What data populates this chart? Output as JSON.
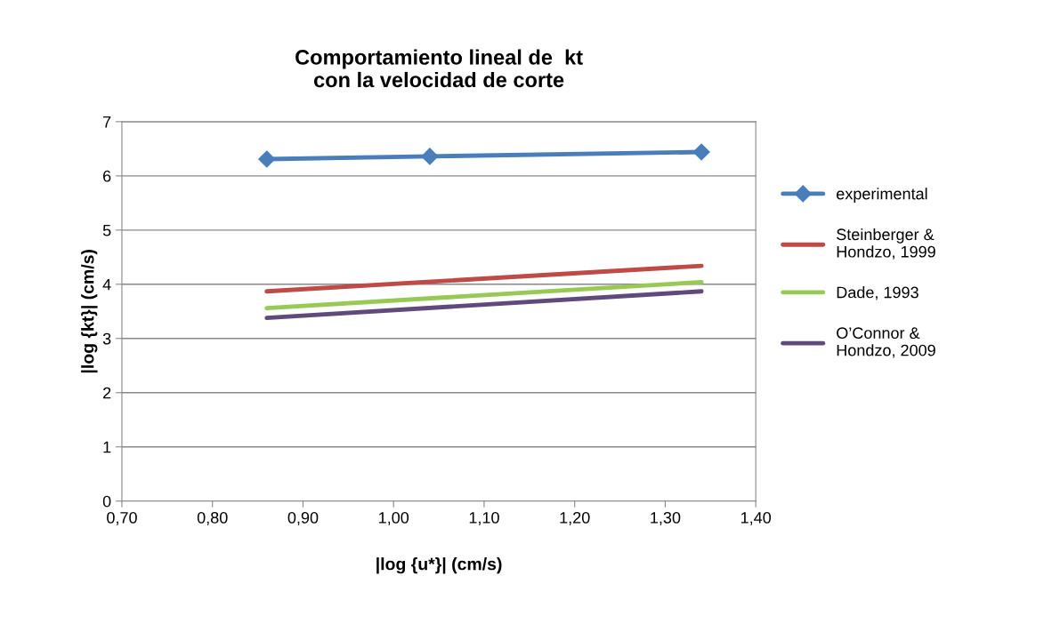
{
  "chart_data": {
    "type": "line",
    "title": "Comportamiento lineal de  kt\ncon la velocidad de corte",
    "xlabel": "|log {u*}| (cm/s)",
    "ylabel": "|log {kt}| (cm/s)",
    "x": [
      0.86,
      1.04,
      1.34
    ],
    "series": [
      {
        "name": "experimental",
        "color": "#4a7ebb",
        "marker": "diamond",
        "values": [
          6.31,
          6.36,
          6.44
        ]
      },
      {
        "name": "Steinberger &\nHondzo, 1999",
        "color": "#be4b48",
        "marker": "none",
        "values": [
          3.87,
          null,
          4.34
        ]
      },
      {
        "name": "Dade, 1993",
        "color": "#98c954",
        "marker": "none",
        "values": [
          3.56,
          null,
          4.04
        ]
      },
      {
        "name": "O’Connor &\nHondzo, 2009",
        "color": "#604a7b",
        "marker": "none",
        "values": [
          3.38,
          null,
          3.87
        ]
      }
    ],
    "xlim": [
      0.7,
      1.4
    ],
    "xticks": [
      {
        "value": 0.7,
        "label": "0,70"
      },
      {
        "value": 0.8,
        "label": "0,80"
      },
      {
        "value": 0.9,
        "label": "0,90"
      },
      {
        "value": 1.0,
        "label": "1,00"
      },
      {
        "value": 1.1,
        "label": "1,10"
      },
      {
        "value": 1.2,
        "label": "1,20"
      },
      {
        "value": 1.3,
        "label": "1,30"
      },
      {
        "value": 1.4,
        "label": "1,40"
      }
    ],
    "ylim": [
      0,
      7
    ],
    "yticks": [
      0,
      1,
      2,
      3,
      4,
      5,
      6,
      7
    ],
    "grid": "y",
    "legend": "right"
  }
}
